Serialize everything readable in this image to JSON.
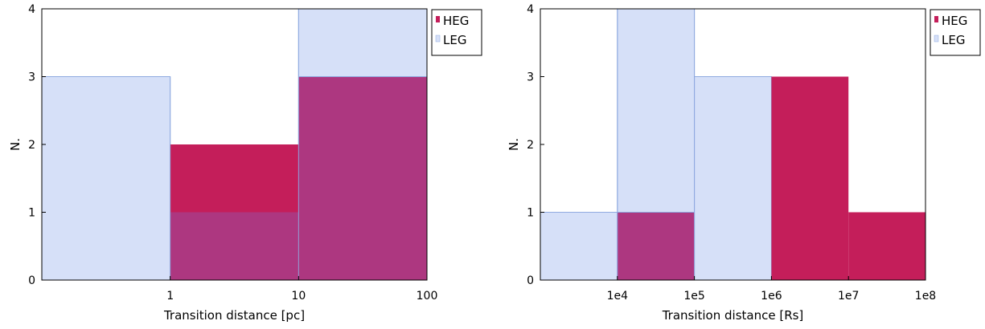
{
  "chart_data": [
    {
      "type": "bar",
      "subtype": "step-histogram",
      "title": "",
      "xlabel": "Transition distance [pc]",
      "ylabel": "N.",
      "x_scale": "log",
      "xlim": [
        0.1,
        100
      ],
      "ylim": [
        0,
        4
      ],
      "x_tick_values": [
        1,
        10,
        100
      ],
      "x_tick_labels": [
        "1",
        "10",
        "100"
      ],
      "y_ticks": [
        0,
        1,
        2,
        3,
        4
      ],
      "grid": false,
      "legend_position": "top-right",
      "series": [
        {
          "name": "LEG",
          "color": "#d6e0f8",
          "edge_color": "#8faae0",
          "bins": [
            {
              "from": 0.1,
              "to": 1,
              "count": 3
            },
            {
              "from": 1,
              "to": 10,
              "count": 1
            },
            {
              "from": 10,
              "to": 100,
              "count": 4
            }
          ]
        },
        {
          "name": "HEG",
          "color": "#c41e5a",
          "bins": [
            {
              "from": 1,
              "to": 10,
              "count": 2
            },
            {
              "from": 10,
              "to": 100,
              "count": 3
            }
          ]
        }
      ],
      "overlap_color": "#ad3780"
    },
    {
      "type": "bar",
      "subtype": "step-histogram",
      "title": "",
      "xlabel": "Transition distance [Rs]",
      "ylabel": "N.",
      "x_scale": "log",
      "xlim": [
        1000,
        100000000
      ],
      "ylim": [
        0,
        4
      ],
      "x_tick_values": [
        10000,
        100000,
        1000000,
        10000000,
        100000000
      ],
      "x_tick_labels": [
        "1e4",
        "1e5",
        "1e6",
        "1e7",
        "1e8"
      ],
      "y_ticks": [
        0,
        1,
        2,
        3,
        4
      ],
      "grid": false,
      "legend_position": "top-right",
      "series": [
        {
          "name": "LEG",
          "color": "#d6e0f8",
          "edge_color": "#8faae0",
          "bins": [
            {
              "from": 1000,
              "to": 10000,
              "count": 1
            },
            {
              "from": 10000,
              "to": 100000,
              "count": 4
            },
            {
              "from": 100000,
              "to": 1000000,
              "count": 3
            }
          ]
        },
        {
          "name": "HEG",
          "color": "#c41e5a",
          "bins": [
            {
              "from": 10000,
              "to": 100000,
              "count": 1
            },
            {
              "from": 1000000,
              "to": 10000000,
              "count": 3
            },
            {
              "from": 10000000,
              "to": 100000000,
              "count": 1
            }
          ]
        }
      ],
      "overlap_color": "#ad3780"
    }
  ]
}
